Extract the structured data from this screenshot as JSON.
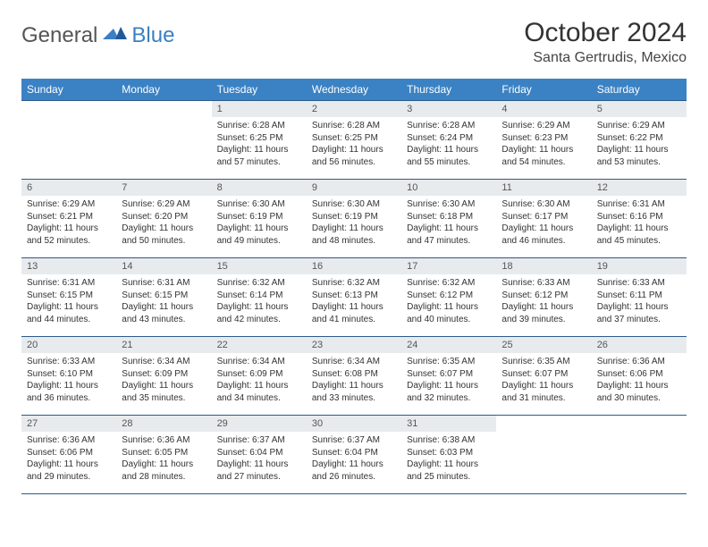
{
  "brand": {
    "general": "General",
    "blue": "Blue"
  },
  "title": "October 2024",
  "location": "Santa Gertrudis, Mexico",
  "dayHeaders": [
    "Sunday",
    "Monday",
    "Tuesday",
    "Wednesday",
    "Thursday",
    "Friday",
    "Saturday"
  ],
  "colors": {
    "header_bg": "#3b82c4",
    "header_text": "#ffffff",
    "cell_border": "#2d5a8a",
    "daynum_bg": "#e8ebee",
    "body_text": "#333333",
    "logo_gray": "#555555",
    "logo_blue": "#3b7fc4"
  },
  "weeks": [
    [
      {
        "n": "",
        "sr": "",
        "ss": "",
        "dl": ""
      },
      {
        "n": "",
        "sr": "",
        "ss": "",
        "dl": ""
      },
      {
        "n": "1",
        "sr": "6:28 AM",
        "ss": "6:25 PM",
        "dl": "11 hours and 57 minutes."
      },
      {
        "n": "2",
        "sr": "6:28 AM",
        "ss": "6:25 PM",
        "dl": "11 hours and 56 minutes."
      },
      {
        "n": "3",
        "sr": "6:28 AM",
        "ss": "6:24 PM",
        "dl": "11 hours and 55 minutes."
      },
      {
        "n": "4",
        "sr": "6:29 AM",
        "ss": "6:23 PM",
        "dl": "11 hours and 54 minutes."
      },
      {
        "n": "5",
        "sr": "6:29 AM",
        "ss": "6:22 PM",
        "dl": "11 hours and 53 minutes."
      }
    ],
    [
      {
        "n": "6",
        "sr": "6:29 AM",
        "ss": "6:21 PM",
        "dl": "11 hours and 52 minutes."
      },
      {
        "n": "7",
        "sr": "6:29 AM",
        "ss": "6:20 PM",
        "dl": "11 hours and 50 minutes."
      },
      {
        "n": "8",
        "sr": "6:30 AM",
        "ss": "6:19 PM",
        "dl": "11 hours and 49 minutes."
      },
      {
        "n": "9",
        "sr": "6:30 AM",
        "ss": "6:19 PM",
        "dl": "11 hours and 48 minutes."
      },
      {
        "n": "10",
        "sr": "6:30 AM",
        "ss": "6:18 PM",
        "dl": "11 hours and 47 minutes."
      },
      {
        "n": "11",
        "sr": "6:30 AM",
        "ss": "6:17 PM",
        "dl": "11 hours and 46 minutes."
      },
      {
        "n": "12",
        "sr": "6:31 AM",
        "ss": "6:16 PM",
        "dl": "11 hours and 45 minutes."
      }
    ],
    [
      {
        "n": "13",
        "sr": "6:31 AM",
        "ss": "6:15 PM",
        "dl": "11 hours and 44 minutes."
      },
      {
        "n": "14",
        "sr": "6:31 AM",
        "ss": "6:15 PM",
        "dl": "11 hours and 43 minutes."
      },
      {
        "n": "15",
        "sr": "6:32 AM",
        "ss": "6:14 PM",
        "dl": "11 hours and 42 minutes."
      },
      {
        "n": "16",
        "sr": "6:32 AM",
        "ss": "6:13 PM",
        "dl": "11 hours and 41 minutes."
      },
      {
        "n": "17",
        "sr": "6:32 AM",
        "ss": "6:12 PM",
        "dl": "11 hours and 40 minutes."
      },
      {
        "n": "18",
        "sr": "6:33 AM",
        "ss": "6:12 PM",
        "dl": "11 hours and 39 minutes."
      },
      {
        "n": "19",
        "sr": "6:33 AM",
        "ss": "6:11 PM",
        "dl": "11 hours and 37 minutes."
      }
    ],
    [
      {
        "n": "20",
        "sr": "6:33 AM",
        "ss": "6:10 PM",
        "dl": "11 hours and 36 minutes."
      },
      {
        "n": "21",
        "sr": "6:34 AM",
        "ss": "6:09 PM",
        "dl": "11 hours and 35 minutes."
      },
      {
        "n": "22",
        "sr": "6:34 AM",
        "ss": "6:09 PM",
        "dl": "11 hours and 34 minutes."
      },
      {
        "n": "23",
        "sr": "6:34 AM",
        "ss": "6:08 PM",
        "dl": "11 hours and 33 minutes."
      },
      {
        "n": "24",
        "sr": "6:35 AM",
        "ss": "6:07 PM",
        "dl": "11 hours and 32 minutes."
      },
      {
        "n": "25",
        "sr": "6:35 AM",
        "ss": "6:07 PM",
        "dl": "11 hours and 31 minutes."
      },
      {
        "n": "26",
        "sr": "6:36 AM",
        "ss": "6:06 PM",
        "dl": "11 hours and 30 minutes."
      }
    ],
    [
      {
        "n": "27",
        "sr": "6:36 AM",
        "ss": "6:06 PM",
        "dl": "11 hours and 29 minutes."
      },
      {
        "n": "28",
        "sr": "6:36 AM",
        "ss": "6:05 PM",
        "dl": "11 hours and 28 minutes."
      },
      {
        "n": "29",
        "sr": "6:37 AM",
        "ss": "6:04 PM",
        "dl": "11 hours and 27 minutes."
      },
      {
        "n": "30",
        "sr": "6:37 AM",
        "ss": "6:04 PM",
        "dl": "11 hours and 26 minutes."
      },
      {
        "n": "31",
        "sr": "6:38 AM",
        "ss": "6:03 PM",
        "dl": "11 hours and 25 minutes."
      },
      {
        "n": "",
        "sr": "",
        "ss": "",
        "dl": ""
      },
      {
        "n": "",
        "sr": "",
        "ss": "",
        "dl": ""
      }
    ]
  ],
  "labels": {
    "sunrise": "Sunrise:",
    "sunset": "Sunset:",
    "daylight": "Daylight:"
  },
  "typography": {
    "title_fontsize": 30,
    "location_fontsize": 16,
    "dayheader_fontsize": 12,
    "daynum_fontsize": 11,
    "body_fontsize": 10
  }
}
